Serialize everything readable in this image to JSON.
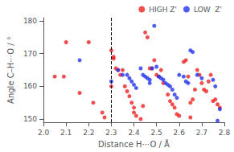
{
  "chart_data": {
    "type": "scatter",
    "xlabel": "Distance H⋯O / Å",
    "ylabel": "Angle C–H⋯O / °",
    "xlim": [
      2.0,
      2.8
    ],
    "ylim": [
      149,
      181
    ],
    "xticks": [
      {
        "value": 2.0,
        "label": "2.0"
      },
      2.1,
      2.2,
      2.3,
      2.4,
      2.5,
      2.6,
      2.7,
      2.8
    ],
    "yticks": [
      150,
      160,
      170,
      180
    ],
    "vline": 2.3,
    "grid": false,
    "legend": "upper right",
    "marker": "circle",
    "series": [
      {
        "name": "HIGH Z'",
        "color": "#ee2222",
        "values": [
          [
            2.05,
            163.0
          ],
          [
            2.09,
            163.0
          ],
          [
            2.1,
            173.5
          ],
          [
            2.2,
            173.5
          ],
          [
            2.16,
            158.0
          ],
          [
            2.22,
            155.0
          ],
          [
            2.26,
            152.0
          ],
          [
            2.27,
            150.5
          ],
          [
            2.3,
            171.0
          ],
          [
            2.3,
            160.0
          ],
          [
            2.31,
            169.0
          ],
          [
            2.31,
            168.5
          ],
          [
            2.32,
            165.5
          ],
          [
            2.33,
            165.0
          ],
          [
            2.34,
            163.5
          ],
          [
            2.35,
            165.0
          ],
          [
            2.36,
            160.0
          ],
          [
            2.37,
            158.5
          ],
          [
            2.38,
            157.0
          ],
          [
            2.39,
            155.0
          ],
          [
            2.4,
            153.5
          ],
          [
            2.4,
            152.0
          ],
          [
            2.41,
            151.0
          ],
          [
            2.43,
            150.0
          ],
          [
            2.44,
            154.0
          ],
          [
            2.45,
            176.5
          ],
          [
            2.46,
            175.0
          ],
          [
            2.47,
            165.5
          ],
          [
            2.48,
            165.5
          ],
          [
            2.49,
            168.0
          ],
          [
            2.5,
            163.5
          ],
          [
            2.51,
            163.0
          ],
          [
            2.52,
            165.0
          ],
          [
            2.53,
            161.0
          ],
          [
            2.55,
            157.5
          ],
          [
            2.56,
            155.5
          ],
          [
            2.57,
            154.5
          ],
          [
            2.58,
            153.5
          ],
          [
            2.59,
            151.5
          ],
          [
            2.6,
            151.0
          ],
          [
            2.62,
            167.5
          ],
          [
            2.63,
            168.0
          ],
          [
            2.64,
            163.0
          ],
          [
            2.65,
            155.0
          ],
          [
            2.65,
            150.5
          ],
          [
            2.66,
            156.0
          ],
          [
            2.67,
            159.0
          ],
          [
            2.68,
            165.0
          ],
          [
            2.69,
            163.5
          ],
          [
            2.7,
            161.0
          ],
          [
            2.71,
            159.0
          ],
          [
            2.72,
            158.5
          ],
          [
            2.73,
            161.5
          ],
          [
            2.74,
            163.5
          ],
          [
            2.75,
            155.5
          ],
          [
            2.76,
            156.0
          ],
          [
            2.77,
            154.5
          ],
          [
            2.78,
            153.5
          ]
        ]
      },
      {
        "name": "LOW  Z'",
        "color": "#2233ee",
        "values": [
          [
            2.16,
            168.0
          ],
          [
            2.3,
            161.5
          ],
          [
            2.33,
            165.0
          ],
          [
            2.35,
            163.5
          ],
          [
            2.37,
            163.5
          ],
          [
            2.38,
            162.5
          ],
          [
            2.39,
            161.5
          ],
          [
            2.4,
            160.5
          ],
          [
            2.41,
            159.5
          ],
          [
            2.43,
            165.5
          ],
          [
            2.44,
            163.5
          ],
          [
            2.45,
            163.0
          ],
          [
            2.46,
            162.5
          ],
          [
            2.47,
            162.0
          ],
          [
            2.47,
            161.0
          ],
          [
            2.48,
            165.5
          ],
          [
            2.49,
            178.5
          ],
          [
            2.5,
            166.0
          ],
          [
            2.51,
            163.0
          ],
          [
            2.52,
            162.5
          ],
          [
            2.53,
            162.0
          ],
          [
            2.54,
            161.0
          ],
          [
            2.55,
            160.5
          ],
          [
            2.56,
            160.0
          ],
          [
            2.57,
            159.0
          ],
          [
            2.58,
            157.5
          ],
          [
            2.59,
            156.5
          ],
          [
            2.6,
            163.5
          ],
          [
            2.62,
            163.0
          ],
          [
            2.63,
            161.5
          ],
          [
            2.64,
            161.0
          ],
          [
            2.65,
            171.0
          ],
          [
            2.66,
            170.5
          ],
          [
            2.68,
            163.5
          ],
          [
            2.7,
            162.5
          ],
          [
            2.75,
            162.0
          ],
          [
            2.76,
            160.0
          ],
          [
            2.77,
            149.5
          ],
          [
            2.78,
            153.0
          ]
        ]
      }
    ]
  }
}
